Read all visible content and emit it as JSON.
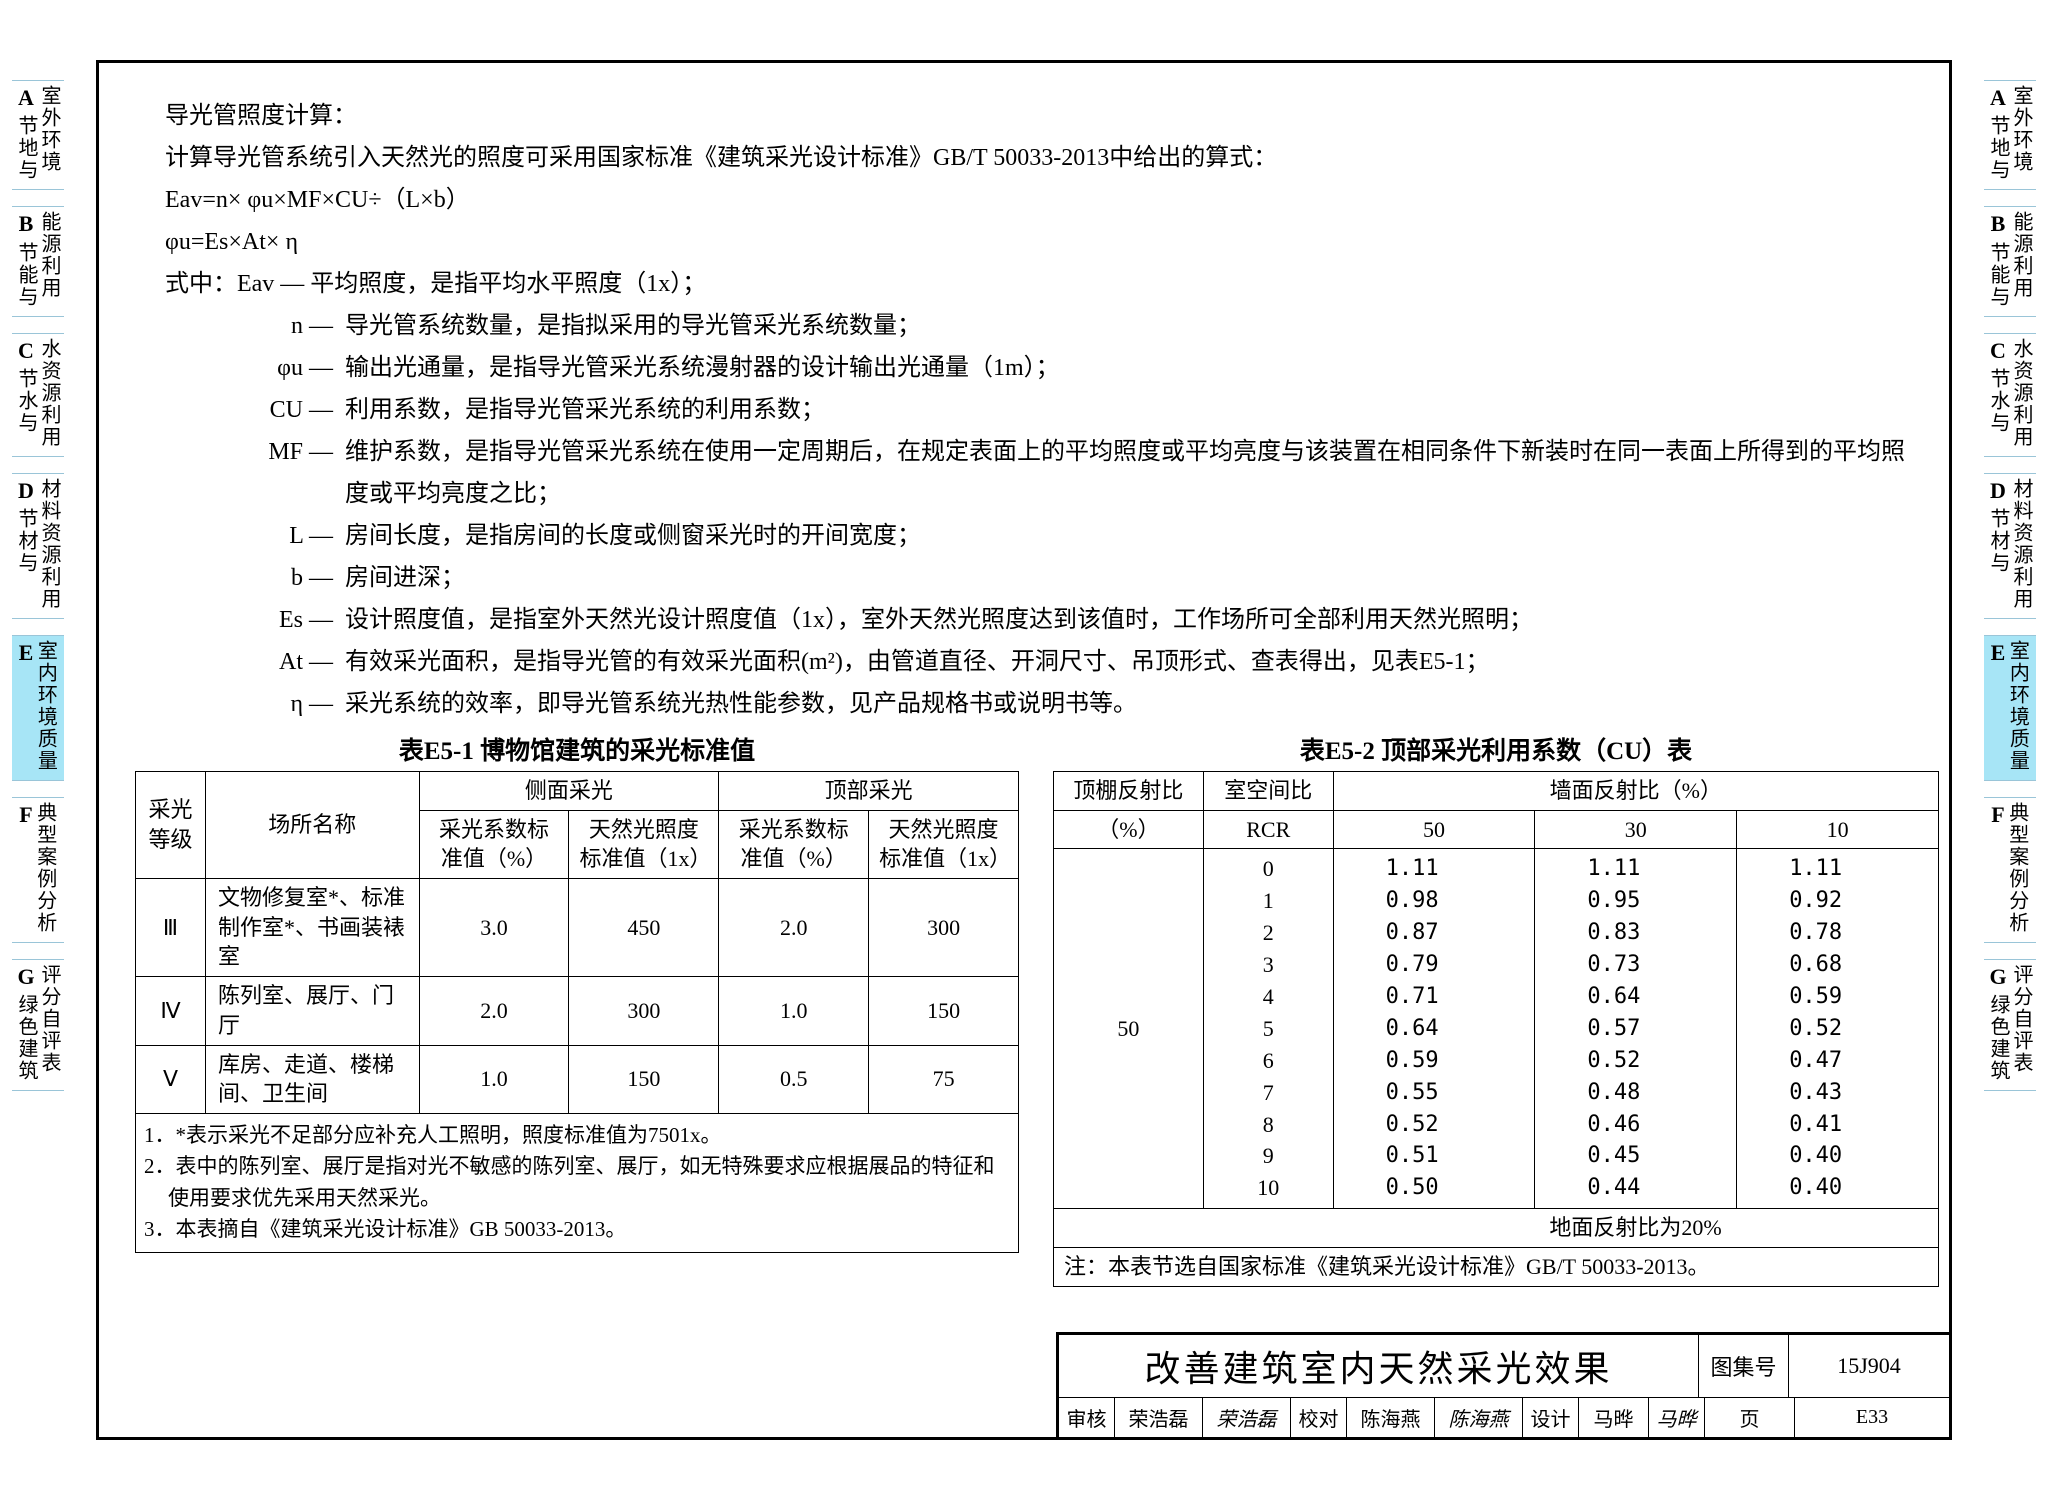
{
  "side_tabs": [
    {
      "letter": "A",
      "title": "室外环境",
      "sub": "节地与",
      "active": false
    },
    {
      "letter": "B",
      "title": "能源利用",
      "sub": "节能与",
      "active": false
    },
    {
      "letter": "C",
      "title": "水资源利用",
      "sub": "节水与",
      "active": false
    },
    {
      "letter": "D",
      "title": "材料资源利用",
      "sub": "节材与",
      "active": false
    },
    {
      "letter": "E",
      "title": "室内环境质量",
      "sub": "",
      "active": true
    },
    {
      "letter": "F",
      "title": "典型案例分析",
      "sub": "",
      "active": false
    },
    {
      "letter": "G",
      "title": "评分自评表",
      "sub": "绿色建筑",
      "active": false
    }
  ],
  "intro": {
    "l1": "导光管照度计算：",
    "l2": "计算导光管系统引入天然光的照度可采用国家标准《建筑采光设计标准》GB/T 50033-2013中给出的算式：",
    "l3": "Eav=n× φu×MF×CU÷（L×b）",
    "l4": "φu=Es×At× η",
    "l5": "式中：Eav — 平均照度，是指平均水平照度（1x）；"
  },
  "defs": [
    {
      "k": "n",
      "v": "导光管系统数量，是指拟采用的导光管采光系统数量；"
    },
    {
      "k": "φu",
      "v": "输出光通量，是指导光管采光系统漫射器的设计输出光通量（1m）；"
    },
    {
      "k": "CU",
      "v": "利用系数，是指导光管采光系统的利用系数；"
    },
    {
      "k": "MF",
      "v": "维护系数，是指导光管采光系统在使用一定周期后，在规定表面上的平均照度或平均亮度与该装置在相同条件下新装时在同一表面上所得到的平均照度或平均亮度之比；"
    },
    {
      "k": "L",
      "v": "房间长度，是指房间的长度或侧窗采光时的开间宽度；"
    },
    {
      "k": "b",
      "v": "房间进深；"
    },
    {
      "k": "Es",
      "v": "设计照度值，是指室外天然光设计照度值（1x），室外天然光照度达到该值时，工作场所可全部利用天然光照明；"
    },
    {
      "k": "At",
      "v": "有效采光面积，是指导光管的有效采光面积(m²)，由管道直径、开洞尺寸、吊顶形式、查表得出，见表E5-1；"
    },
    {
      "k": "η",
      "v": "采光系统的效率，即导光管系统光热性能参数，见产品规格书或说明书等。"
    }
  ],
  "table1": {
    "title": "表E5-1 博物馆建筑的采光标准值",
    "h1": "采光等级",
    "h2": "场所名称",
    "h3": "侧面采光",
    "h4": "顶部采光",
    "sh1": "采光系数标准值（%）",
    "sh2": "天然光照度标准值（1x）",
    "sh3": "采光系数标准值（%）",
    "sh4": "天然光照度标准值（1x）",
    "rows": [
      {
        "g": "Ⅲ",
        "name": "文物修复室*、标准制作室*、书画装裱室",
        "a": "3.0",
        "b": "450",
        "c": "2.0",
        "d": "300"
      },
      {
        "g": "Ⅳ",
        "name": "陈列室、展厅、门厅",
        "a": "2.0",
        "b": "300",
        "c": "1.0",
        "d": "150"
      },
      {
        "g": "Ⅴ",
        "name": "库房、走道、楼梯间、卫生间",
        "a": "1.0",
        "b": "150",
        "c": "0.5",
        "d": "75"
      }
    ],
    "notes": [
      "1．*表示采光不足部分应补充人工照明，照度标准值为7501x。",
      "2．表中的陈列室、展厅是指对光不敏感的陈列室、展厅，如无特殊要求应根据展品的特征和使用要求优先采用天然采光。",
      "3．本表摘自《建筑采光设计标准》GB 50033-2013。"
    ]
  },
  "table2": {
    "title": "表E5-2 顶部采光利用系数（CU）表",
    "h1a": "顶棚反射比",
    "h1b": "（%）",
    "h2a": "室空间比",
    "h2b": "RCR",
    "h3": "墙面反射比（%）",
    "cols": [
      "50",
      "30",
      "10"
    ],
    "group_val": "50",
    "rows": [
      {
        "r": "0",
        "v": [
          "1.11",
          "1.11",
          "1.11"
        ]
      },
      {
        "r": "1",
        "v": [
          "0.98",
          "0.95",
          "0.92"
        ]
      },
      {
        "r": "2",
        "v": [
          "0.87",
          "0.83",
          "0.78"
        ]
      },
      {
        "r": "3",
        "v": [
          "0.79",
          "0.73",
          "0.68"
        ]
      },
      {
        "r": "4",
        "v": [
          "0.71",
          "0.64",
          "0.59"
        ]
      },
      {
        "r": "5",
        "v": [
          "0.64",
          "0.57",
          "0.52"
        ]
      },
      {
        "r": "6",
        "v": [
          "0.59",
          "0.52",
          "0.47"
        ]
      },
      {
        "r": "7",
        "v": [
          "0.55",
          "0.48",
          "0.43"
        ]
      },
      {
        "r": "8",
        "v": [
          "0.52",
          "0.46",
          "0.41"
        ]
      },
      {
        "r": "9",
        "v": [
          "0.51",
          "0.45",
          "0.40"
        ]
      },
      {
        "r": "10",
        "v": [
          "0.50",
          "0.44",
          "0.40"
        ]
      }
    ],
    "foot1": "地面反射比为20%",
    "foot2": "注：本表节选自国家标准《建筑采光设计标准》GB/T 50033-2013。"
  },
  "titleblock": {
    "main": "改善建筑室内天然采光效果",
    "book_lbl": "图集号",
    "book_val": "15J904",
    "r2": {
      "a": "审核",
      "b": "荣浩磊",
      "c": "荣浩磊",
      "d": "校对",
      "e": "陈海燕",
      "f": "陈海燕",
      "g": "设计",
      "h": "马晔",
      "i": "马晔",
      "j": "页",
      "k": "E33"
    }
  }
}
